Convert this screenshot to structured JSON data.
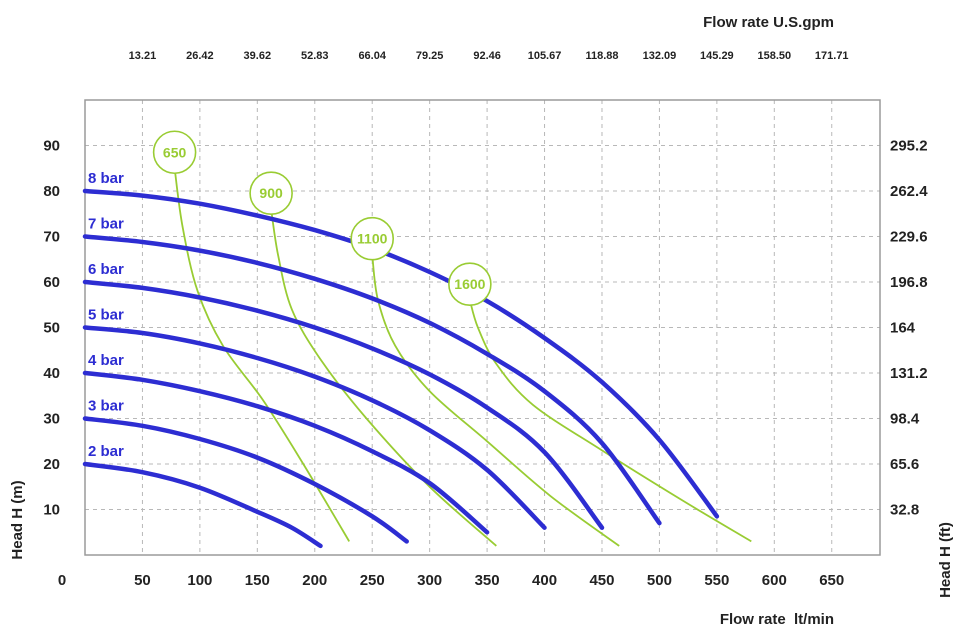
{
  "chart_data": {
    "type": "line",
    "xlabel": "Flow rate  lt/min",
    "x2label": "Flow rate U.S.gpm",
    "ylabel": "Head H (m)",
    "y2label": "Head H (ft)",
    "xlim": [
      0,
      700
    ],
    "ylim": [
      0,
      100
    ],
    "x_ticks": [
      "0",
      "50",
      "100",
      "150",
      "200",
      "250",
      "300",
      "350",
      "400",
      "450",
      "500",
      "550",
      "600",
      "650"
    ],
    "x2_ticks": [
      {
        "x": 50,
        "label": "13.21"
      },
      {
        "x": 100,
        "label": "26.42"
      },
      {
        "x": 150,
        "label": "39.62"
      },
      {
        "x": 200,
        "label": "52.83"
      },
      {
        "x": 250,
        "label": "66.04"
      },
      {
        "x": 300,
        "label": "79.25"
      },
      {
        "x": 350,
        "label": "92.46"
      },
      {
        "x": 400,
        "label": "105.67"
      },
      {
        "x": 450,
        "label": "118.88"
      },
      {
        "x": 500,
        "label": "132.09"
      },
      {
        "x": 550,
        "label": "145.29"
      },
      {
        "x": 600,
        "label": "158.50"
      },
      {
        "x": 650,
        "label": "171.71"
      }
    ],
    "y_ticks": [
      "10",
      "20",
      "30",
      "40",
      "50",
      "60",
      "70",
      "80",
      "90"
    ],
    "y2_ticks": [
      {
        "y": 10,
        "label": "32.8"
      },
      {
        "y": 20,
        "label": "65.6"
      },
      {
        "y": 30,
        "label": "98.4"
      },
      {
        "y": 40,
        "label": "131.2"
      },
      {
        "y": 50,
        "label": "164"
      },
      {
        "y": 60,
        "label": "196.8"
      },
      {
        "y": 70,
        "label": "229.6"
      },
      {
        "y": 80,
        "label": "262.4"
      },
      {
        "y": 90,
        "label": "295.2"
      }
    ],
    "grid": true,
    "series": [
      {
        "name": "2 bar",
        "color": "#2d2dd2",
        "x": [
          0,
          50,
          100,
          150,
          180,
          205
        ],
        "y": [
          20,
          18.2,
          14.8,
          9.5,
          6,
          2
        ]
      },
      {
        "name": "3 bar",
        "color": "#2d2dd2",
        "x": [
          0,
          50,
          100,
          150,
          200,
          250,
          280
        ],
        "y": [
          30,
          28.4,
          25.5,
          21.4,
          15.6,
          8.5,
          3
        ]
      },
      {
        "name": "4 bar",
        "color": "#2d2dd2",
        "x": [
          0,
          50,
          100,
          150,
          200,
          250,
          300,
          350
        ],
        "y": [
          40,
          38.5,
          36,
          32.7,
          28.4,
          22.8,
          15.8,
          5
        ]
      },
      {
        "name": "5 bar",
        "color": "#2d2dd2",
        "x": [
          0,
          50,
          100,
          150,
          200,
          250,
          300,
          350,
          400
        ],
        "y": [
          50,
          48.8,
          46.5,
          43.3,
          39.2,
          34,
          27.4,
          18.7,
          6
        ]
      },
      {
        "name": "6 bar",
        "color": "#2d2dd2",
        "x": [
          0,
          50,
          100,
          150,
          200,
          250,
          300,
          350,
          400,
          450
        ],
        "y": [
          60,
          58.7,
          56.6,
          53.7,
          50,
          45.4,
          39.7,
          32.4,
          22.6,
          6
        ]
      },
      {
        "name": "7 bar",
        "color": "#2d2dd2",
        "x": [
          0,
          50,
          100,
          150,
          200,
          250,
          300,
          350,
          400,
          450,
          500
        ],
        "y": [
          70,
          68.8,
          66.9,
          64.2,
          60.7,
          56.4,
          51,
          44.2,
          36,
          24.6,
          7
        ]
      },
      {
        "name": "8 bar",
        "color": "#2d2dd2",
        "x": [
          0,
          50,
          100,
          150,
          200,
          250,
          300,
          350,
          400,
          450,
          500,
          550
        ],
        "y": [
          80,
          79,
          77.2,
          74.6,
          71.4,
          67.4,
          62.2,
          55.8,
          47.7,
          38,
          25.3,
          8.5
        ]
      }
    ],
    "rpm_curves": [
      {
        "label": "650",
        "color": "#99cc33",
        "x": [
          78,
          85,
          98,
          120,
          155,
          190,
          230
        ],
        "y": [
          85,
          72,
          58,
          46,
          34,
          20,
          3
        ]
      },
      {
        "label": "900",
        "color": "#99cc33",
        "x": [
          162,
          168,
          180,
          205,
          245,
          300,
          358
        ],
        "y": [
          76,
          66,
          54,
          43,
          30,
          15,
          2
        ]
      },
      {
        "label": "1100",
        "color": "#99cc33",
        "x": [
          250,
          255,
          270,
          300,
          350,
          405,
          465
        ],
        "y": [
          66,
          56,
          46,
          36,
          25,
          13,
          2
        ]
      },
      {
        "label": "1600",
        "color": "#99cc33",
        "x": [
          335,
          342,
          358,
          390,
          450,
          520,
          580
        ],
        "y": [
          56,
          50,
          42,
          33,
          23,
          12,
          3
        ]
      }
    ]
  }
}
